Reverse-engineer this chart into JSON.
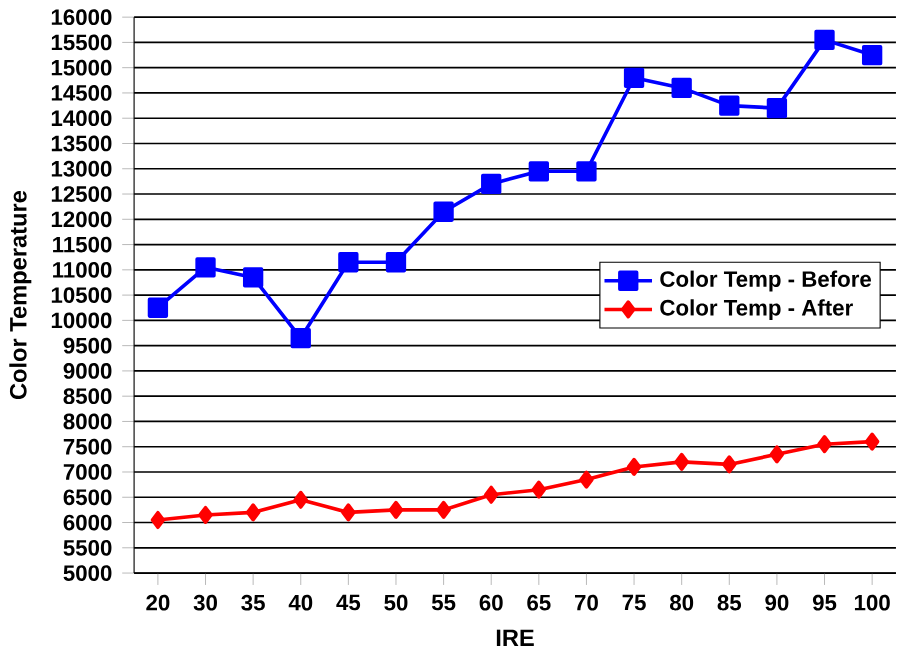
{
  "chart_data": {
    "type": "line",
    "xlabel": "IRE",
    "ylabel": "Color Temperature",
    "categories": [
      "20",
      "30",
      "35",
      "40",
      "45",
      "50",
      "55",
      "60",
      "65",
      "70",
      "75",
      "80",
      "85",
      "90",
      "95",
      "100"
    ],
    "series": [
      {
        "name": "Color Temp - Before",
        "color": "#0000ff",
        "marker": "square",
        "values": [
          10250,
          11050,
          10850,
          9650,
          11150,
          11150,
          12150,
          12700,
          12950,
          12950,
          14800,
          14600,
          14250,
          14200,
          15550,
          15250
        ]
      },
      {
        "name": "Color Temp - After",
        "color": "#ff0000",
        "marker": "diamond",
        "values": [
          6050,
          6150,
          6200,
          6450,
          6200,
          6250,
          6250,
          6550,
          6650,
          6850,
          7100,
          7200,
          7150,
          7350,
          7550,
          7600
        ]
      }
    ],
    "ylim": [
      5000,
      16000
    ],
    "yticks": [
      5000,
      5500,
      6000,
      6500,
      7000,
      7500,
      8000,
      8500,
      9000,
      9500,
      10000,
      10500,
      11000,
      11500,
      12000,
      12500,
      13000,
      13500,
      14000,
      14500,
      15000,
      15500,
      16000
    ],
    "grid": "y",
    "legend": "right"
  }
}
